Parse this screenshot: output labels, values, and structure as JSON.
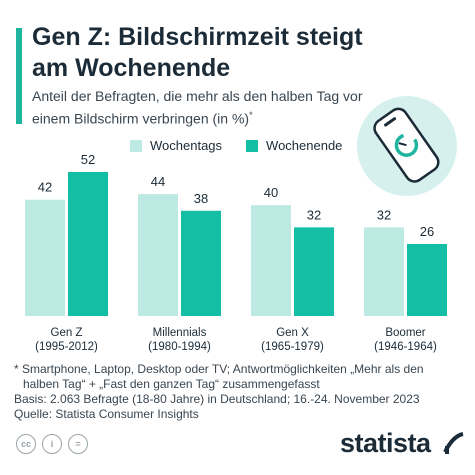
{
  "title": "Gen Z: Bildschirmzeit steigt am Wochenende",
  "subtitle": "Anteil der Befragten, die mehr als den halben Tag vor einem Bildschirm verbringen (in %)",
  "subtitle_mark": "*",
  "colors": {
    "accent": "#1fb59e",
    "weekday": "#bde9e3",
    "weekend": "#15bfa5"
  },
  "chart_data": {
    "type": "bar",
    "categories": [
      "Gen Z\n(1995-2012)",
      "Millennials\n(1980-1994)",
      "Gen X\n(1965-1979)",
      "Boomer\n(1946-1964)"
    ],
    "series": [
      {
        "name": "Wochentags",
        "values": [
          42,
          44,
          40,
          32
        ]
      },
      {
        "name": "Wochenende",
        "values": [
          52,
          38,
          32,
          26
        ]
      }
    ],
    "ylim": [
      0,
      52
    ],
    "grid": false,
    "legend": "top"
  },
  "footnotes": {
    "line1": "* Smartphone, Laptop, Desktop oder TV; Antwortmöglichkeiten „Mehr als den",
    "line2": "halben Tag“ + „Fast den ganzen Tag“ zusammengefasst",
    "basis": "Basis: 2.063 Befragte (18-80 Jahre) in Deutschland; 16.-24. November 2023",
    "source": "Quelle: Statista Consumer Insights"
  },
  "license_icons": [
    "cc-icon",
    "info-icon",
    "equals-icon"
  ],
  "brand": "statista"
}
